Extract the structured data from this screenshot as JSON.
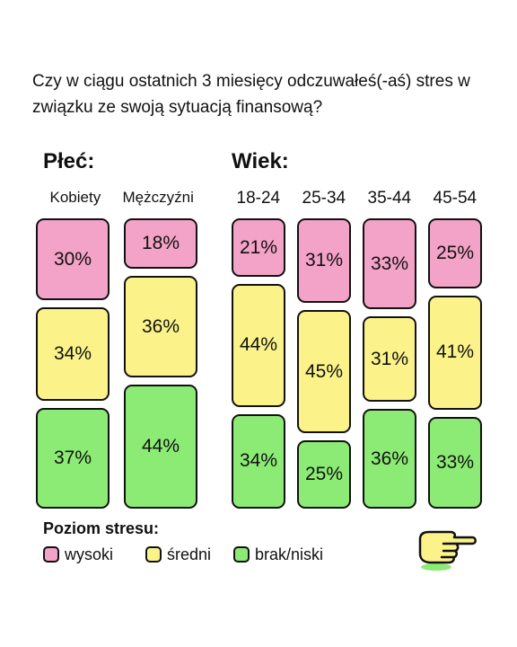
{
  "question": "Czy w ciągu ostatnich 3 miesięcy odczuwałeś(-aś) stres w związku ze swoją sytuacją finansową?",
  "groups": {
    "gender_title": "Płeć:",
    "age_title": "Wiek:"
  },
  "colors": {
    "wysoki": "#f4a3c8",
    "sredni": "#fbf38a",
    "niski": "#8ceb74",
    "border": "#111111"
  },
  "legend": {
    "title": "Poziom stresu:",
    "items": [
      "wysoki",
      "średni",
      "brak/niski"
    ]
  },
  "decor": {
    "hand_icon": "pointing-hand-icon"
  },
  "chart_data": {
    "type": "bar",
    "stacked": true,
    "normalized": true,
    "categories": [
      "Kobiety",
      "Mężczyźni",
      "18-24",
      "25-34",
      "35-44",
      "45-54"
    ],
    "series": [
      {
        "name": "wysoki",
        "values": [
          30,
          18,
          21,
          31,
          33,
          25
        ]
      },
      {
        "name": "średni",
        "values": [
          34,
          36,
          44,
          45,
          31,
          41
        ]
      },
      {
        "name": "brak/niski",
        "values": [
          37,
          44,
          34,
          25,
          36,
          33
        ]
      }
    ],
    "value_suffix": "%"
  }
}
